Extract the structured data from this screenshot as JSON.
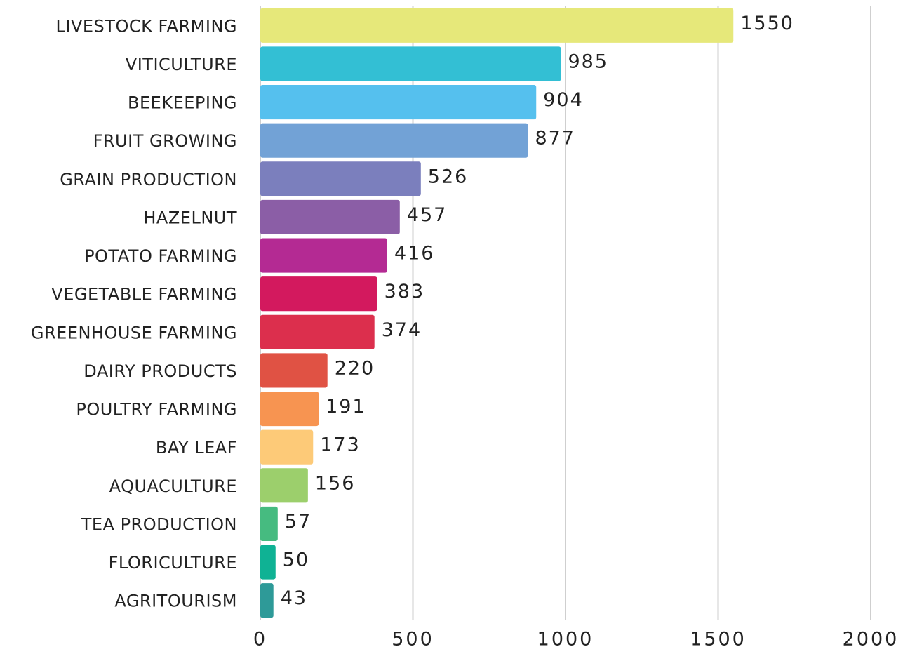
{
  "chart_data": {
    "type": "bar",
    "orientation": "horizontal",
    "categories": [
      "LIVESTOCK FARMING",
      "VITICULTURE",
      "BEEKEEPING",
      "FRUIT GROWING",
      "GRAIN PRODUCTION",
      "HAZELNUT",
      "POTATO FARMING",
      "VEGETABLE FARMING",
      "GREENHOUSE FARMING",
      "DAIRY PRODUCTS",
      "POULTRY FARMING",
      "BAY LEAF",
      "AQUACULTURE",
      "TEA PRODUCTION",
      "FLORICULTURE",
      "AGRITOURISM"
    ],
    "values": [
      1550,
      985,
      904,
      877,
      526,
      457,
      416,
      383,
      374,
      220,
      191,
      173,
      156,
      57,
      50,
      43
    ],
    "colors": [
      "#e6e87a",
      "#33bfd4",
      "#55c0ee",
      "#72a2d6",
      "#7b7fbd",
      "#8b5ea6",
      "#b42a93",
      "#d3195e",
      "#dc2f4d",
      "#e05244",
      "#f79451",
      "#fdca78",
      "#9ccf6c",
      "#46bb80",
      "#0fb294",
      "#2e9a98"
    ],
    "xlim": [
      0,
      2000
    ],
    "xticks": [
      0,
      500,
      1000,
      1500,
      2000
    ],
    "grid": true
  }
}
